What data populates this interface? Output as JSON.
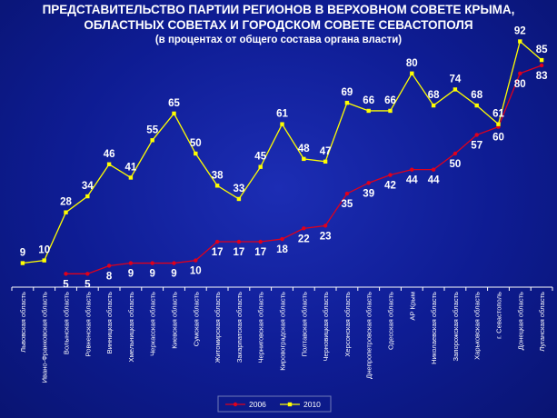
{
  "title": {
    "line1": "ПРЕДСТАВИТЕЛЬСТВО ПАРТИИ РЕГИОНОВ В ВЕРХОВНОМ СОВЕТЕ КРЫМА,",
    "line2": "ОБЛАСТНЫХ СОВЕТАХ И ГОРОДСКОМ СОВЕТЕ СЕВАСТОПОЛЯ",
    "line3": "(в процентах от общего состава органа власти)"
  },
  "colors": {
    "background": "#0e1c93",
    "series_2006": "#e0001b",
    "series_2010": "#ffff00",
    "axis": "#ffffff"
  },
  "chart_data": {
    "type": "line",
    "categories": [
      "Львовская область",
      "Ивано-Франковская область",
      "Волынская область",
      "Ровненская область",
      "Винницкая область",
      "Хмельницкая область",
      "Черкасская область",
      "Киевская область",
      "Сумская область",
      "Житомирская область",
      "Закарпатская область",
      "Черниговская область",
      "Кировоградская область",
      "Полтавская область",
      "Черновицкая область",
      "Херсонская область",
      "Днепропетровская область",
      "Одесская область",
      "АР Крым",
      "Николаевская область",
      "Запорожская область",
      "Харьковская область",
      "г. Севастополь",
      "Донецкая область",
      "Луганская область"
    ],
    "series": [
      {
        "name": "2006",
        "values": [
          null,
          null,
          5,
          5,
          8,
          9,
          9,
          9,
          10,
          17,
          17,
          17,
          18,
          22,
          23,
          35,
          39,
          42,
          44,
          44,
          50,
          57,
          60,
          80,
          83
        ]
      },
      {
        "name": "2010",
        "values": [
          9,
          10,
          28,
          34,
          46,
          41,
          55,
          65,
          50,
          38,
          33,
          45,
          61,
          48,
          47,
          69,
          66,
          66,
          80,
          68,
          74,
          68,
          61,
          92,
          85
        ]
      }
    ],
    "ylim": [
      0,
      100
    ],
    "legend": "bottom"
  }
}
